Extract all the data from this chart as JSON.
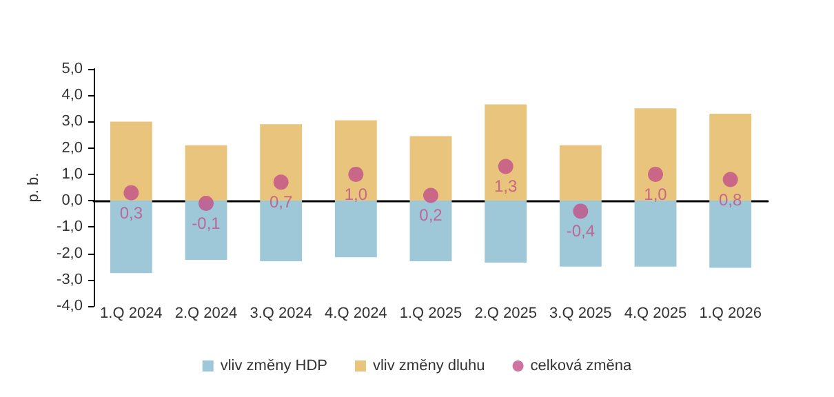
{
  "chart_data": {
    "type": "bar",
    "stacked": true,
    "ylabel": "p. b.",
    "categories": [
      "1.Q 2024",
      "2.Q 2024",
      "3.Q 2024",
      "4.Q 2024",
      "1.Q 2025",
      "2.Q 2025",
      "3.Q 2025",
      "4.Q 2025",
      "1.Q 2026"
    ],
    "series": [
      {
        "name": "vliv změny HDP",
        "color": "#9ec8d8",
        "values": [
          -2.75,
          -2.25,
          -2.3,
          -2.15,
          -2.3,
          -2.35,
          -2.5,
          -2.5,
          -2.55
        ]
      },
      {
        "name": "vliv změny dluhu",
        "color": "#e8c47c",
        "values": [
          3.0,
          2.1,
          2.9,
          3.05,
          2.45,
          3.65,
          2.1,
          3.5,
          3.3
        ]
      },
      {
        "name": "celková změna",
        "type": "scatter",
        "color": "#c2508a",
        "marker": "circle",
        "values": [
          0.3,
          -0.1,
          0.7,
          1.0,
          0.2,
          1.3,
          -0.4,
          1.0,
          0.8
        ],
        "value_labels": [
          "0,3",
          "-0,1",
          "0,7",
          "1,0",
          "0,2",
          "1,3",
          "-0,4",
          "1,0",
          "0,8"
        ]
      }
    ],
    "ylim": [
      -4,
      5
    ],
    "yticks": [
      {
        "value": -4,
        "label": "-4,0"
      },
      {
        "value": -3,
        "label": "-3,0"
      },
      {
        "value": -2,
        "label": "-2,0"
      },
      {
        "value": -1,
        "label": "-1,0"
      },
      {
        "value": 0,
        "label": "0,0"
      },
      {
        "value": 1,
        "label": "1,0"
      },
      {
        "value": 2,
        "label": "2,0"
      },
      {
        "value": 3,
        "label": "3,0"
      },
      {
        "value": 4,
        "label": "4,0"
      },
      {
        "value": 5,
        "label": "5,0"
      }
    ],
    "legend": "bottom"
  }
}
